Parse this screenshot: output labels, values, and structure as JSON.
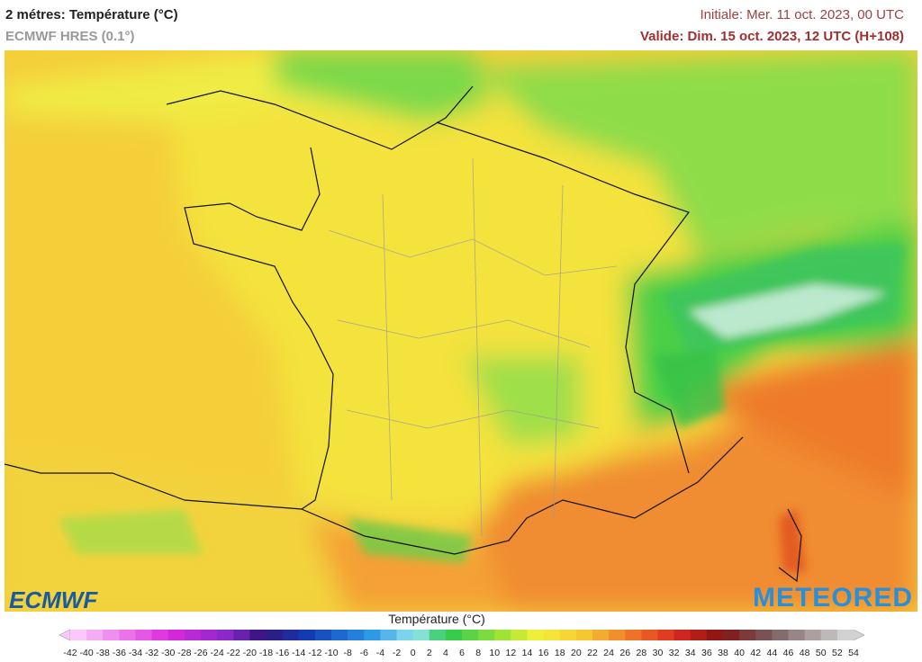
{
  "header": {
    "title": "2 métres: Température (°C)",
    "subtitle": "ECMWF HRES (0.1°)",
    "initial": "Initiale: Mer. 11 oct. 2023, 00 UTC",
    "valid": "Valide: Dim. 15 oct. 2023, 12 UTC (H+108)"
  },
  "logos": {
    "left": "ECMWF",
    "right": "METEORED"
  },
  "colorbar": {
    "title": "Température (°C)",
    "labels": [
      -42,
      -40,
      -38,
      -36,
      -34,
      -32,
      -30,
      -28,
      -26,
      -24,
      -22,
      -20,
      -18,
      -16,
      -14,
      -12,
      -10,
      -8,
      -6,
      -4,
      -2,
      0,
      2,
      4,
      6,
      8,
      10,
      12,
      14,
      16,
      18,
      20,
      22,
      24,
      26,
      28,
      30,
      32,
      34,
      36,
      38,
      40,
      42,
      44,
      46,
      48,
      50,
      52,
      54
    ]
  }
}
